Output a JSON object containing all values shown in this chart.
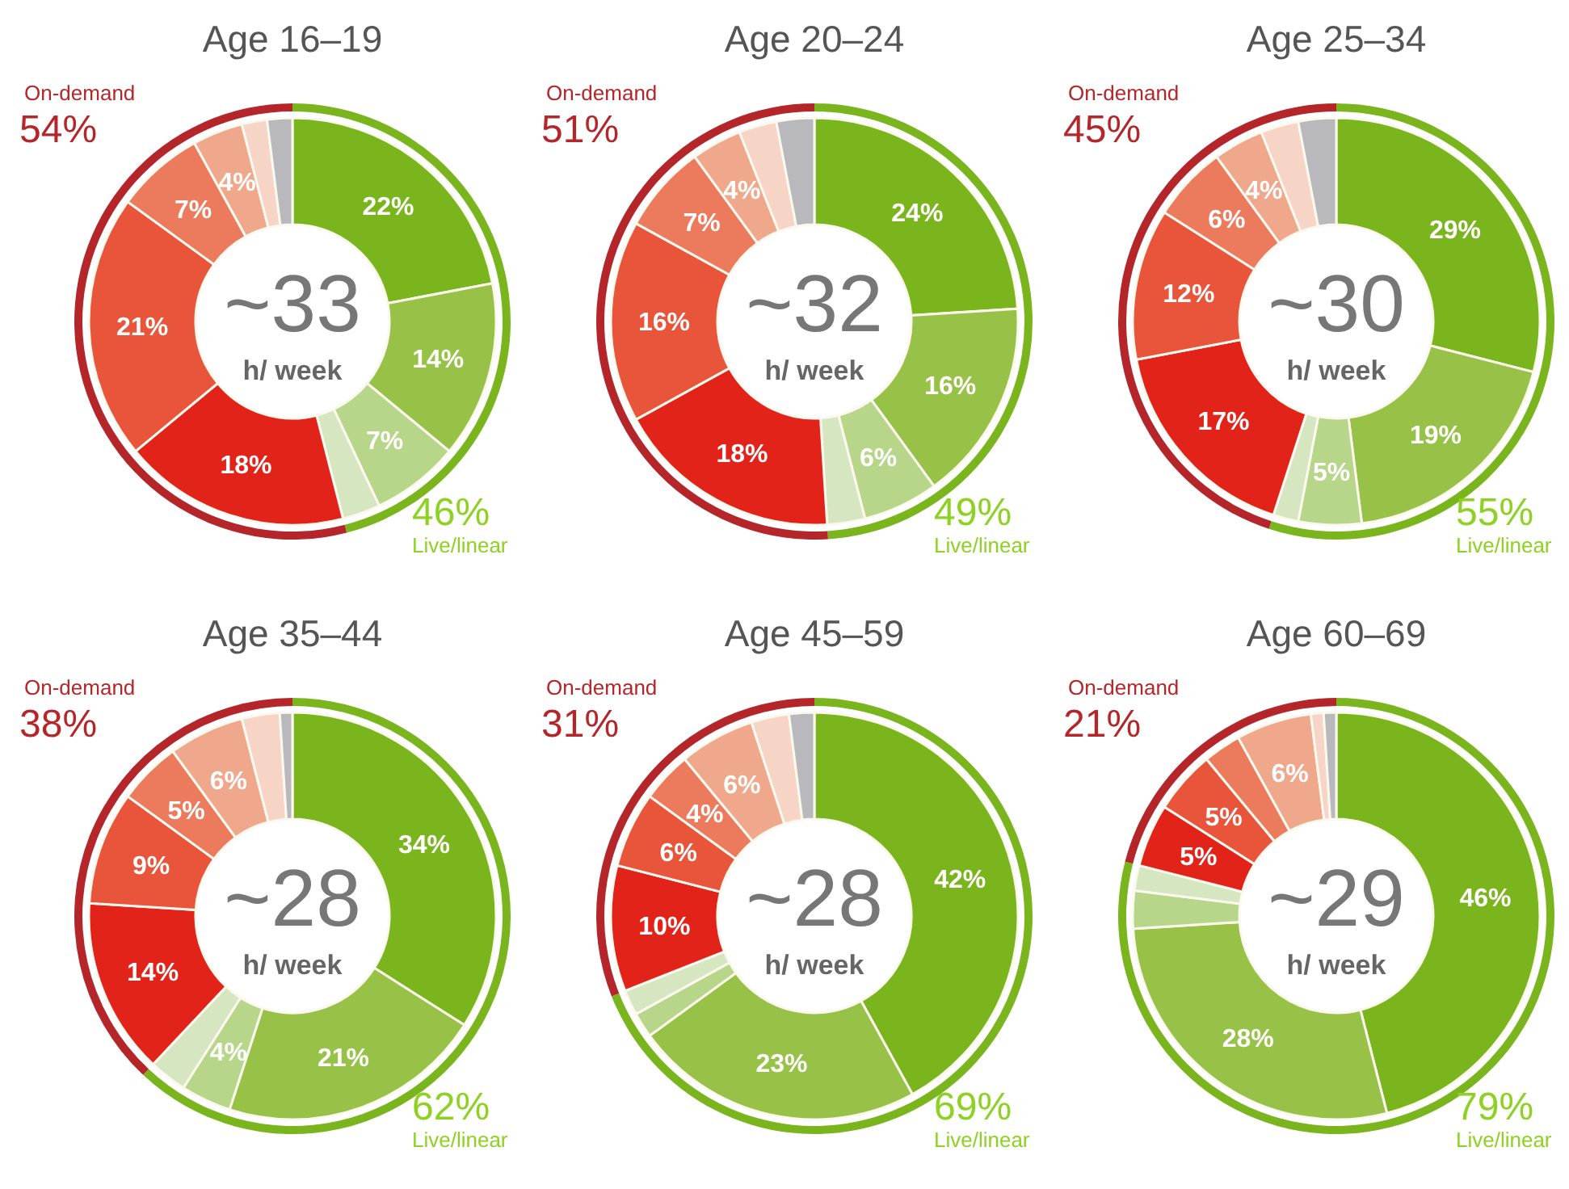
{
  "chart_data": [
    {
      "type": "donut",
      "title": "Age 16–19",
      "categories": [
        null,
        null,
        null,
        null,
        null,
        null,
        null,
        null,
        null,
        null
      ],
      "annotations": [
        "~33",
        "h/ week"
      ],
      "values": [
        22,
        14,
        7,
        3,
        18,
        21,
        7,
        4,
        2,
        2
      ],
      "colors": [
        "#7ab51d",
        "#97c247",
        "#b8d68a",
        "#d6e6c0",
        "#e2231a",
        "#e8553a",
        "#ec7a5c",
        "#f0a88c",
        "#f6d4c6",
        "#b9b9bd"
      ],
      "value_labels": [
        "22%",
        "14%",
        "7%",
        null,
        "18%",
        "21%",
        "7%",
        "4%",
        null,
        null
      ]
    },
    {
      "type": "donut",
      "categories": [
        "Live/linear",
        "On-demand"
      ],
      "values": [
        46,
        54
      ],
      "colors": [
        "#7ab51d",
        "#b5262a"
      ],
      "value_labels": [
        "46%",
        "54%"
      ]
    },
    {
      "type": "donut",
      "title": "Age 20–24",
      "categories": [
        null,
        null,
        null,
        null,
        null,
        null,
        null,
        null,
        null,
        null
      ],
      "annotations": [
        "~32",
        "h/ week"
      ],
      "values": [
        24,
        16,
        6,
        3,
        18,
        16,
        7,
        4,
        3,
        3
      ],
      "colors": [
        "#7ab51d",
        "#97c247",
        "#b8d68a",
        "#d6e6c0",
        "#e2231a",
        "#e8553a",
        "#ec7a5c",
        "#f0a88c",
        "#f6d4c6",
        "#b9b9bd"
      ],
      "value_labels": [
        "24%",
        "16%",
        "6%",
        null,
        "18%",
        "16%",
        "7%",
        "4%",
        null,
        null
      ]
    },
    {
      "type": "donut",
      "categories": [
        "Live/linear",
        "On-demand"
      ],
      "values": [
        49,
        51
      ],
      "colors": [
        "#7ab51d",
        "#b5262a"
      ],
      "value_labels": [
        "49%",
        "51%"
      ]
    },
    {
      "type": "donut",
      "title": "Age 25–34",
      "categories": [
        null,
        null,
        null,
        null,
        null,
        null,
        null,
        null,
        null,
        null
      ],
      "annotations": [
        "~30",
        "h/ week"
      ],
      "values": [
        29,
        19,
        5,
        2,
        17,
        12,
        6,
        4,
        3,
        3
      ],
      "colors": [
        "#7ab51d",
        "#97c247",
        "#b8d68a",
        "#d6e6c0",
        "#e2231a",
        "#e8553a",
        "#ec7a5c",
        "#f0a88c",
        "#f6d4c6",
        "#b9b9bd"
      ],
      "value_labels": [
        "29%",
        "19%",
        "5%",
        null,
        "17%",
        "12%",
        "6%",
        "4%",
        null,
        null
      ]
    },
    {
      "type": "donut",
      "categories": [
        "Live/linear",
        "On-demand"
      ],
      "values": [
        55,
        45
      ],
      "colors": [
        "#7ab51d",
        "#b5262a"
      ],
      "value_labels": [
        "55%",
        "45%"
      ]
    },
    {
      "type": "donut",
      "title": "Age 35–44",
      "categories": [
        null,
        null,
        null,
        null,
        null,
        null,
        null,
        null,
        null,
        null
      ],
      "annotations": [
        "~28",
        "h/ week"
      ],
      "values": [
        34,
        21,
        4,
        3,
        14,
        9,
        5,
        6,
        3,
        1
      ],
      "colors": [
        "#7ab51d",
        "#97c247",
        "#b8d68a",
        "#d6e6c0",
        "#e2231a",
        "#e8553a",
        "#ec7a5c",
        "#f0a88c",
        "#f6d4c6",
        "#b9b9bd"
      ],
      "value_labels": [
        "34%",
        "21%",
        "4%",
        null,
        "14%",
        "9%",
        "5%",
        "6%",
        null,
        null
      ]
    },
    {
      "type": "donut",
      "categories": [
        "Live/linear",
        "On-demand"
      ],
      "values": [
        62,
        38
      ],
      "colors": [
        "#7ab51d",
        "#b5262a"
      ],
      "value_labels": [
        "62%",
        "38%"
      ]
    },
    {
      "type": "donut",
      "title": "Age 45–59",
      "categories": [
        null,
        null,
        null,
        null,
        null,
        null,
        null,
        null,
        null,
        null
      ],
      "annotations": [
        "~28",
        "h/ week"
      ],
      "values": [
        42,
        23,
        2,
        2,
        10,
        6,
        4,
        6,
        3,
        2
      ],
      "colors": [
        "#7ab51d",
        "#97c247",
        "#b8d68a",
        "#d6e6c0",
        "#e2231a",
        "#e8553a",
        "#ec7a5c",
        "#f0a88c",
        "#f6d4c6",
        "#b9b9bd"
      ],
      "value_labels": [
        "42%",
        "23%",
        null,
        null,
        "10%",
        "6%",
        "4%",
        "6%",
        null,
        null
      ]
    },
    {
      "type": "donut",
      "categories": [
        "Live/linear",
        "On-demand"
      ],
      "values": [
        69,
        31
      ],
      "colors": [
        "#7ab51d",
        "#b5262a"
      ],
      "value_labels": [
        "69%",
        "31%"
      ]
    },
    {
      "type": "donut",
      "title": "Age 60–69",
      "categories": [
        null,
        null,
        null,
        null,
        null,
        null,
        null,
        null,
        null,
        null
      ],
      "annotations": [
        "~29",
        "h/ week"
      ],
      "values": [
        46,
        28,
        3,
        2,
        5,
        5,
        3,
        6,
        1,
        1
      ],
      "colors": [
        "#7ab51d",
        "#97c247",
        "#b8d68a",
        "#d6e6c0",
        "#e2231a",
        "#e8553a",
        "#ec7a5c",
        "#f0a88c",
        "#f6d4c6",
        "#b9b9bd"
      ],
      "value_labels": [
        "46%",
        "28%",
        null,
        null,
        "5%",
        "5%",
        null,
        "6%",
        null,
        null
      ]
    },
    {
      "type": "donut",
      "categories": [
        "Live/linear",
        "On-demand"
      ],
      "values": [
        79,
        21
      ],
      "colors": [
        "#7ab51d",
        "#b5262a"
      ],
      "value_labels": [
        "79%",
        "21%"
      ]
    }
  ]
}
